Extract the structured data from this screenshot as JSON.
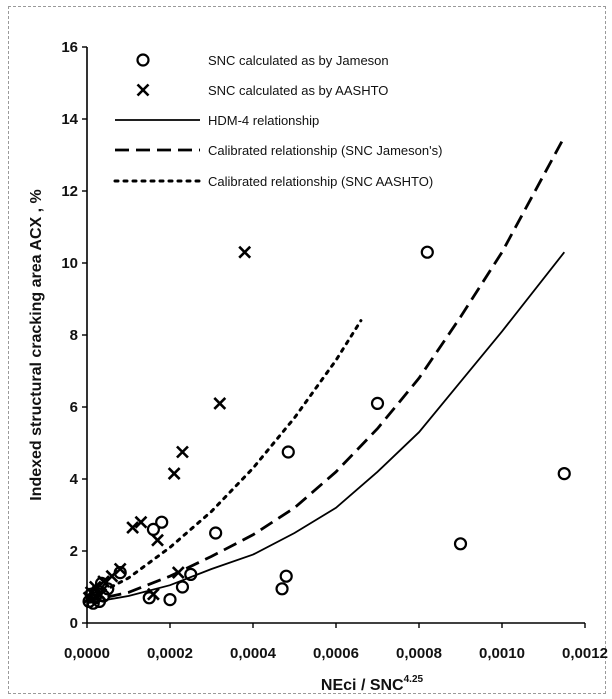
{
  "chart_data": {
    "type": "scatter",
    "xlabel": "NEci / SNC",
    "xlabel_superscript": "4.25",
    "ylabel": "Indexed structural cracking area ACX , %",
    "xlim": [
      0,
      0.0012
    ],
    "ylim": [
      0,
      16
    ],
    "x_tick_labels": [
      "0,0000",
      "0,0002",
      "0,0004",
      "0,0006",
      "0,0008",
      "0,0010",
      "0,0012"
    ],
    "y_tick_labels": [
      "0",
      "2",
      "4",
      "6",
      "8",
      "10",
      "12",
      "14",
      "16"
    ],
    "grid": false,
    "legend_position": "top",
    "series": [
      {
        "name": "SNC calculated as by Jameson",
        "kind": "points",
        "marker": "circle",
        "points": [
          {
            "x": 5e-06,
            "y": 0.6
          },
          {
            "x": 1e-05,
            "y": 0.8
          },
          {
            "x": 1.5e-05,
            "y": 0.55
          },
          {
            "x": 2e-05,
            "y": 0.7
          },
          {
            "x": 2.5e-05,
            "y": 0.9
          },
          {
            "x": 3e-05,
            "y": 0.6
          },
          {
            "x": 3.5e-05,
            "y": 1.1
          },
          {
            "x": 4e-05,
            "y": 0.75
          },
          {
            "x": 5e-05,
            "y": 0.95
          },
          {
            "x": 8e-05,
            "y": 1.4
          },
          {
            "x": 0.00015,
            "y": 0.7
          },
          {
            "x": 0.00016,
            "y": 2.6
          },
          {
            "x": 0.00018,
            "y": 2.8
          },
          {
            "x": 0.0002,
            "y": 0.65
          },
          {
            "x": 0.00023,
            "y": 1.0
          },
          {
            "x": 0.00025,
            "y": 1.35
          },
          {
            "x": 0.00031,
            "y": 2.5
          },
          {
            "x": 0.00047,
            "y": 0.95
          },
          {
            "x": 0.00048,
            "y": 1.3
          },
          {
            "x": 0.000485,
            "y": 4.75
          },
          {
            "x": 0.0007,
            "y": 6.1
          },
          {
            "x": 0.00082,
            "y": 10.3
          },
          {
            "x": 0.0009,
            "y": 2.2
          },
          {
            "x": 0.00115,
            "y": 4.15
          }
        ]
      },
      {
        "name": "SNC calculated as by AASHTO",
        "kind": "points",
        "marker": "x",
        "points": [
          {
            "x": 5e-06,
            "y": 0.7
          },
          {
            "x": 1e-05,
            "y": 0.85
          },
          {
            "x": 2e-05,
            "y": 1.0
          },
          {
            "x": 3e-05,
            "y": 0.8
          },
          {
            "x": 4e-05,
            "y": 1.15
          },
          {
            "x": 6e-05,
            "y": 1.3
          },
          {
            "x": 8e-05,
            "y": 1.5
          },
          {
            "x": 0.00011,
            "y": 2.65
          },
          {
            "x": 0.00013,
            "y": 2.8
          },
          {
            "x": 0.00016,
            "y": 0.8
          },
          {
            "x": 0.00017,
            "y": 2.3
          },
          {
            "x": 0.00021,
            "y": 4.15
          },
          {
            "x": 0.00022,
            "y": 1.4
          },
          {
            "x": 0.00023,
            "y": 4.75
          },
          {
            "x": 0.00032,
            "y": 6.1
          },
          {
            "x": 0.00038,
            "y": 10.3
          }
        ]
      },
      {
        "name": "HDM-4 relationship",
        "kind": "line",
        "dash": "solid",
        "points": [
          {
            "x": 0.0,
            "y": 0.55
          },
          {
            "x": 0.0001,
            "y": 0.75
          },
          {
            "x": 0.0002,
            "y": 1.05
          },
          {
            "x": 0.0003,
            "y": 1.5
          },
          {
            "x": 0.0004,
            "y": 1.9
          },
          {
            "x": 0.0005,
            "y": 2.5
          },
          {
            "x": 0.0006,
            "y": 3.2
          },
          {
            "x": 0.0007,
            "y": 4.2
          },
          {
            "x": 0.0008,
            "y": 5.3
          },
          {
            "x": 0.0009,
            "y": 6.7
          },
          {
            "x": 0.001,
            "y": 8.1
          },
          {
            "x": 0.00115,
            "y": 10.3
          }
        ]
      },
      {
        "name": "Calibrated relationship (SNC Jameson's)",
        "kind": "line",
        "dash": "dashed",
        "points": [
          {
            "x": 0.0,
            "y": 0.6
          },
          {
            "x": 0.0001,
            "y": 0.85
          },
          {
            "x": 0.0002,
            "y": 1.3
          },
          {
            "x": 0.0003,
            "y": 1.85
          },
          {
            "x": 0.0004,
            "y": 2.45
          },
          {
            "x": 0.0005,
            "y": 3.2
          },
          {
            "x": 0.0006,
            "y": 4.2
          },
          {
            "x": 0.0007,
            "y": 5.4
          },
          {
            "x": 0.0008,
            "y": 6.8
          },
          {
            "x": 0.0009,
            "y": 8.5
          },
          {
            "x": 0.001,
            "y": 10.3
          },
          {
            "x": 0.00115,
            "y": 13.5
          }
        ]
      },
      {
        "name": "Calibrated relationship (SNC AASHTO)",
        "kind": "line",
        "dash": "dotted",
        "points": [
          {
            "x": 0.0,
            "y": 0.65
          },
          {
            "x": 0.0001,
            "y": 1.25
          },
          {
            "x": 0.0002,
            "y": 2.1
          },
          {
            "x": 0.0003,
            "y": 3.1
          },
          {
            "x": 0.0004,
            "y": 4.3
          },
          {
            "x": 0.0005,
            "y": 5.7
          },
          {
            "x": 0.0006,
            "y": 7.3
          },
          {
            "x": 0.00066,
            "y": 8.4
          }
        ]
      }
    ]
  }
}
